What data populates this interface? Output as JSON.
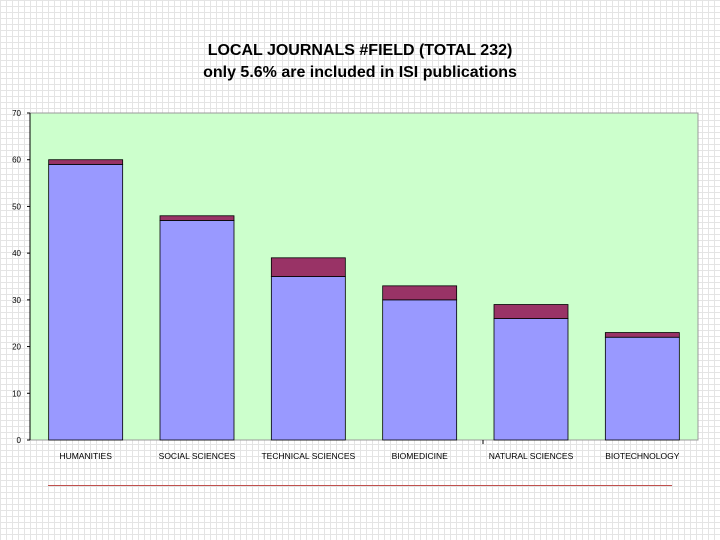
{
  "slide": {
    "title_line1": "LOCAL JOURNALS #FIELD (TOTAL 232)",
    "title_line2": "only 5.6% are included in ISI publications"
  },
  "chart_data": {
    "type": "bar",
    "stacked": true,
    "categories": [
      "HUMANITIES",
      "SOCIAL SCIENCES",
      "TECHNICAL SCIENCES",
      "BIOMEDICINE",
      "NATURAL SCIENCES",
      "BIOTECHNOLOGY"
    ],
    "series": [
      {
        "values": [
          59,
          47,
          35,
          30,
          26,
          22
        ],
        "color": "#9999ff"
      },
      {
        "values": [
          1,
          1,
          4,
          3,
          3,
          1
        ],
        "color": "#993366"
      }
    ],
    "ylim": [
      0,
      70
    ],
    "yticks": [
      0,
      10,
      20,
      30,
      40,
      50,
      60,
      70
    ],
    "plot_background": "#ccffcc",
    "grid": false,
    "legend": "none"
  }
}
